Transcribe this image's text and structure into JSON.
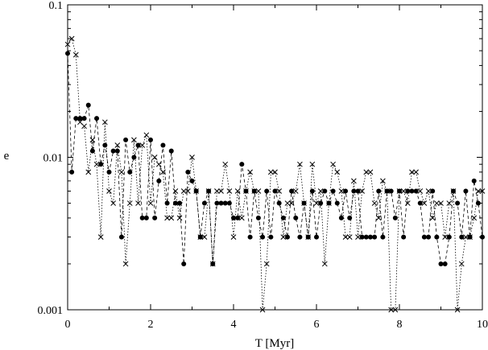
{
  "chart_data": {
    "type": "scatter",
    "xlabel": "T [Myr]",
    "ylabel": "e",
    "xlim": [
      0,
      10
    ],
    "ylim": [
      0.001,
      0.1
    ],
    "yscale": "log",
    "grid": false,
    "legend": "none",
    "x_ticks": [
      {
        "v": 0,
        "label": "0"
      },
      {
        "v": 2,
        "label": "2"
      },
      {
        "v": 4,
        "label": "4"
      },
      {
        "v": 6,
        "label": "6"
      },
      {
        "v": 8,
        "label": "8"
      },
      {
        "v": 10,
        "label": "10"
      }
    ],
    "y_ticks": [
      {
        "v": 0.001,
        "label": "0.001"
      },
      {
        "v": 0.01,
        "label": "0.01"
      },
      {
        "v": 0.1,
        "label": "0.1"
      }
    ],
    "series": [
      {
        "marker": "circle",
        "color": "#000000",
        "line": "dashed",
        "x": [
          0.0,
          0.1,
          0.2,
          0.3,
          0.4,
          0.5,
          0.6,
          0.7,
          0.8,
          0.9,
          1.0,
          1.1,
          1.2,
          1.3,
          1.4,
          1.5,
          1.6,
          1.7,
          1.8,
          1.9,
          2.0,
          2.1,
          2.2,
          2.3,
          2.4,
          2.5,
          2.6,
          2.7,
          2.8,
          2.9,
          3.0,
          3.1,
          3.2,
          3.3,
          3.4,
          3.5,
          3.6,
          3.7,
          3.8,
          3.9,
          4.0,
          4.1,
          4.2,
          4.3,
          4.4,
          4.5,
          4.6,
          4.7,
          4.8,
          4.9,
          5.0,
          5.1,
          5.2,
          5.3,
          5.4,
          5.5,
          5.6,
          5.7,
          5.8,
          5.9,
          6.0,
          6.1,
          6.2,
          6.3,
          6.4,
          6.5,
          6.6,
          6.7,
          6.8,
          6.9,
          7.0,
          7.1,
          7.2,
          7.3,
          7.4,
          7.5,
          7.6,
          7.7,
          7.8,
          7.9,
          8.0,
          8.1,
          8.2,
          8.3,
          8.4,
          8.5,
          8.6,
          8.7,
          8.8,
          8.9,
          9.0,
          9.1,
          9.2,
          9.3,
          9.4,
          9.5,
          9.6,
          9.7,
          9.8,
          9.9,
          10.0
        ],
        "y": [
          0.048,
          0.008,
          0.018,
          0.018,
          0.018,
          0.022,
          0.011,
          0.018,
          0.009,
          0.012,
          0.008,
          0.011,
          0.011,
          0.003,
          0.013,
          0.008,
          0.01,
          0.012,
          0.004,
          0.004,
          0.013,
          0.004,
          0.007,
          0.012,
          0.005,
          0.011,
          0.005,
          0.005,
          0.002,
          0.008,
          0.007,
          0.006,
          0.003,
          0.005,
          0.006,
          0.002,
          0.005,
          0.005,
          0.005,
          0.005,
          0.004,
          0.004,
          0.009,
          0.006,
          0.003,
          0.006,
          0.004,
          0.003,
          0.006,
          0.003,
          0.006,
          0.005,
          0.004,
          0.003,
          0.006,
          0.004,
          0.003,
          0.005,
          0.003,
          0.006,
          0.003,
          0.005,
          0.006,
          0.005,
          0.006,
          0.005,
          0.004,
          0.006,
          0.004,
          0.006,
          0.006,
          0.003,
          0.003,
          0.003,
          0.003,
          0.006,
          0.003,
          0.006,
          0.006,
          0.004,
          0.006,
          0.003,
          0.006,
          0.006,
          0.006,
          0.005,
          0.003,
          0.003,
          0.006,
          0.003,
          0.002,
          0.002,
          0.003,
          0.006,
          0.005,
          0.003,
          0.006,
          0.003,
          0.007,
          0.005,
          0.003
        ]
      },
      {
        "marker": "cross",
        "color": "#000000",
        "line": "dotted",
        "x": [
          0.0,
          0.1,
          0.2,
          0.3,
          0.4,
          0.5,
          0.6,
          0.7,
          0.8,
          0.9,
          1.0,
          1.1,
          1.2,
          1.3,
          1.4,
          1.5,
          1.6,
          1.7,
          1.8,
          1.9,
          2.0,
          2.1,
          2.2,
          2.3,
          2.4,
          2.5,
          2.6,
          2.7,
          2.8,
          2.9,
          3.0,
          3.1,
          3.2,
          3.3,
          3.4,
          3.5,
          3.6,
          3.7,
          3.8,
          3.9,
          4.0,
          4.1,
          4.2,
          4.3,
          4.4,
          4.5,
          4.6,
          4.7,
          4.8,
          4.9,
          5.0,
          5.1,
          5.2,
          5.3,
          5.4,
          5.5,
          5.6,
          5.7,
          5.8,
          5.9,
          6.0,
          6.1,
          6.2,
          6.3,
          6.4,
          6.5,
          6.6,
          6.7,
          6.8,
          6.9,
          7.0,
          7.1,
          7.2,
          7.3,
          7.4,
          7.5,
          7.6,
          7.7,
          7.8,
          7.9,
          8.0,
          8.1,
          8.2,
          8.3,
          8.4,
          8.5,
          8.6,
          8.7,
          8.8,
          8.9,
          9.0,
          9.1,
          9.2,
          9.3,
          9.4,
          9.5,
          9.6,
          9.7,
          9.8,
          9.9,
          10.0
        ],
        "y": [
          0.055,
          0.06,
          0.047,
          0.017,
          0.016,
          0.008,
          0.013,
          0.009,
          0.003,
          0.017,
          0.006,
          0.005,
          0.012,
          0.008,
          0.002,
          0.005,
          0.013,
          0.005,
          0.012,
          0.014,
          0.005,
          0.01,
          0.009,
          0.008,
          0.004,
          0.004,
          0.006,
          0.004,
          0.006,
          0.006,
          0.01,
          0.006,
          0.003,
          0.003,
          0.006,
          0.002,
          0.006,
          0.006,
          0.009,
          0.006,
          0.003,
          0.006,
          0.004,
          0.006,
          0.008,
          0.006,
          0.006,
          0.001,
          0.002,
          0.008,
          0.008,
          0.006,
          0.003,
          0.005,
          0.005,
          0.006,
          0.009,
          0.005,
          0.003,
          0.009,
          0.005,
          0.006,
          0.002,
          0.005,
          0.009,
          0.008,
          0.006,
          0.003,
          0.003,
          0.007,
          0.003,
          0.006,
          0.008,
          0.008,
          0.005,
          0.004,
          0.007,
          0.006,
          0.001,
          0.001,
          0.006,
          0.006,
          0.005,
          0.008,
          0.008,
          0.006,
          0.005,
          0.006,
          0.004,
          0.005,
          0.005,
          0.003,
          0.005,
          0.006,
          0.001,
          0.002,
          0.003,
          0.003,
          0.004,
          0.006,
          0.006
        ]
      }
    ]
  }
}
